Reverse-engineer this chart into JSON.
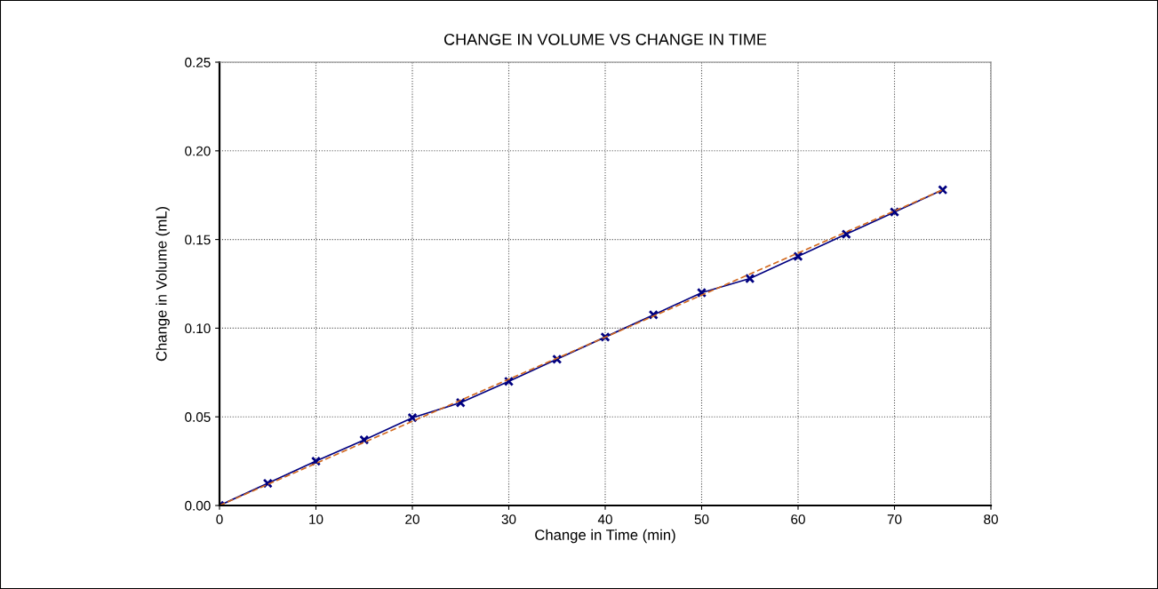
{
  "chart_data": {
    "type": "line",
    "title": "CHANGE IN VOLUME VS CHANGE IN TIME",
    "xlabel": "Change in Time (min)",
    "ylabel": "Change in Volume (mL)",
    "x": [
      0,
      5,
      10,
      15,
      20,
      25,
      30,
      35,
      40,
      45,
      50,
      55,
      60,
      65,
      70,
      75
    ],
    "series": [
      {
        "color": "#000080",
        "values": [
          0,
          0.0125,
          0.025,
          0.037,
          0.0495,
          0.058,
          0.07,
          0.0825,
          0.095,
          0.1075,
          0.12,
          0.128,
          0.1405,
          0.153,
          0.1655,
          0.178
        ],
        "marker": "cross",
        "line_style": "solid"
      },
      {
        "color": "#d2691e",
        "x": [
          0,
          75
        ],
        "values": [
          0,
          0.178
        ],
        "marker": "none",
        "line_style": "dashed"
      }
    ],
    "xlim": [
      0,
      80
    ],
    "xticks": [
      0,
      10,
      20,
      30,
      40,
      50,
      60,
      70,
      80
    ],
    "ylim": [
      0,
      0.25
    ],
    "yticks": [
      {
        "value": 0,
        "label": "0.00"
      },
      {
        "value": 0.05,
        "label": "0.05"
      },
      {
        "value": 0.1,
        "label": "0.10"
      },
      {
        "value": 0.15,
        "label": "0.15"
      },
      {
        "value": 0.2,
        "label": "0.20"
      },
      {
        "value": 0.25,
        "label": "0.25"
      }
    ],
    "grid": true
  }
}
